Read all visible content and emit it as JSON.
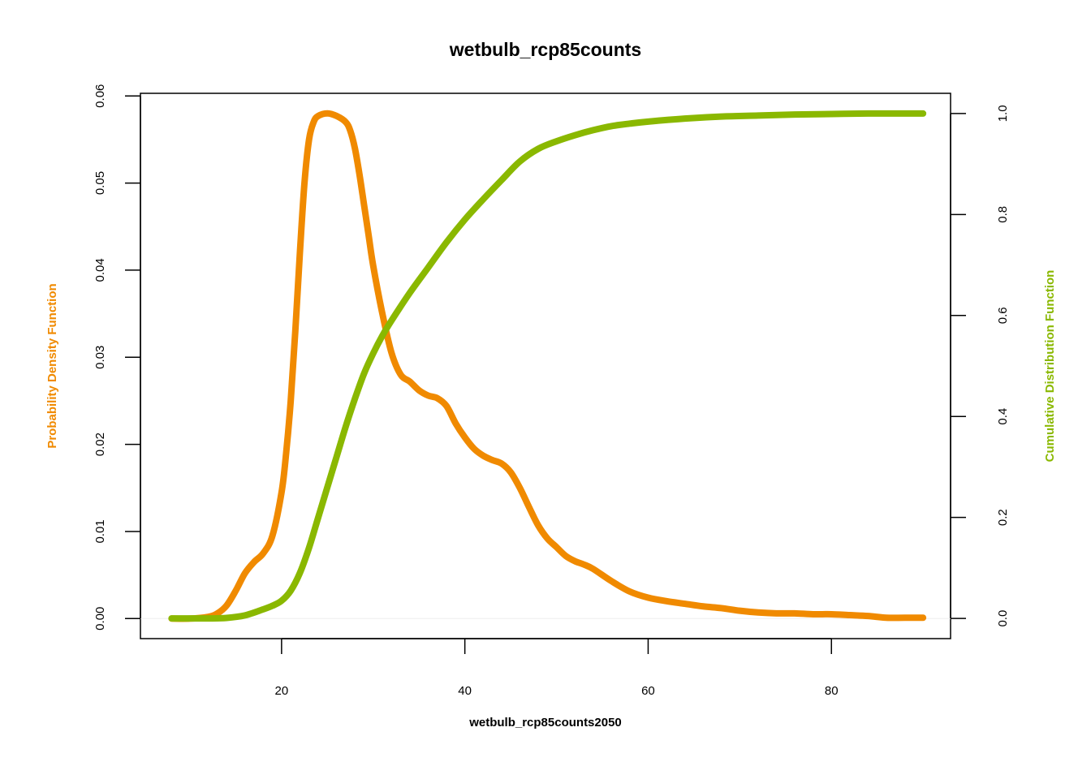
{
  "chart_data": {
    "type": "line",
    "title": "wetbulb_rcp85counts",
    "xlabel": "wetbulb_rcp85counts2050",
    "ylabel_left": "Probability Density Function",
    "ylabel_right": "Cumulative Distribution Function",
    "xlim": [
      4.6,
      93
    ],
    "ylim_left": [
      -0.0023,
      0.0603
    ],
    "ylim_right": [
      -0.04,
      1.04
    ],
    "x_ticks": [
      20,
      40,
      60,
      80
    ],
    "y_left_ticks": [
      "0.00",
      "0.01",
      "0.02",
      "0.03",
      "0.04",
      "0.05",
      "0.06"
    ],
    "y_right_ticks": [
      "0.0",
      "0.2",
      "0.4",
      "0.6",
      "0.8",
      "1.0"
    ],
    "grid": false,
    "colors": {
      "pdf": "#f08a00",
      "cdf": "#8ab800",
      "zero_line": "#eeeeee"
    },
    "series": [
      {
        "key": "pdf",
        "axis": "left",
        "x": [
          8,
          10,
          12,
          13,
          14,
          15,
          16,
          17,
          18,
          19,
          20,
          20.5,
          21,
          21.5,
          22,
          22.5,
          23,
          23.5,
          24,
          25,
          26,
          27,
          27.5,
          28,
          28.5,
          29,
          29.5,
          30,
          31,
          32,
          33,
          34,
          35,
          36,
          37,
          38,
          39,
          40,
          41,
          42,
          43,
          44,
          45,
          46,
          47,
          48,
          49,
          50,
          51,
          52,
          53,
          54,
          56,
          58,
          60,
          62,
          64,
          66,
          68,
          70,
          72,
          74,
          76,
          78,
          80,
          82,
          84,
          86,
          88,
          90
        ],
        "y": [
          0.0,
          0.0,
          0.0002,
          0.0006,
          0.0015,
          0.0032,
          0.0052,
          0.0065,
          0.0075,
          0.0095,
          0.0145,
          0.019,
          0.025,
          0.033,
          0.042,
          0.05,
          0.055,
          0.057,
          0.0577,
          0.058,
          0.0577,
          0.057,
          0.056,
          0.054,
          0.051,
          0.0475,
          0.044,
          0.0405,
          0.035,
          0.0305,
          0.028,
          0.0272,
          0.0262,
          0.0256,
          0.0253,
          0.0244,
          0.0224,
          0.0208,
          0.0195,
          0.0187,
          0.0182,
          0.0178,
          0.0168,
          0.015,
          0.0128,
          0.0107,
          0.0092,
          0.0082,
          0.0072,
          0.0066,
          0.0062,
          0.0057,
          0.0043,
          0.0031,
          0.0024,
          0.002,
          0.0017,
          0.0014,
          0.0012,
          0.0009,
          0.0007,
          0.0006,
          0.0006,
          0.0005,
          0.0005,
          0.0004,
          0.0003,
          0.0001,
          0.0001,
          0.0001
        ]
      },
      {
        "key": "cdf",
        "axis": "right",
        "x": [
          8,
          12,
          14,
          16,
          18,
          19,
          20,
          21,
          22,
          23,
          24,
          25,
          26,
          27,
          28,
          29,
          30,
          31,
          32,
          34,
          36,
          38,
          40,
          42,
          44,
          46,
          48,
          50,
          52,
          54,
          56,
          58,
          60,
          64,
          68,
          72,
          76,
          80,
          84,
          88,
          90
        ],
        "y": [
          0.0,
          0.0,
          0.001,
          0.006,
          0.018,
          0.025,
          0.035,
          0.055,
          0.09,
          0.14,
          0.2,
          0.26,
          0.32,
          0.38,
          0.435,
          0.485,
          0.525,
          0.56,
          0.59,
          0.645,
          0.695,
          0.745,
          0.79,
          0.83,
          0.868,
          0.905,
          0.93,
          0.945,
          0.957,
          0.967,
          0.975,
          0.98,
          0.984,
          0.99,
          0.994,
          0.996,
          0.998,
          0.999,
          1.0,
          1.0,
          1.0
        ]
      }
    ]
  }
}
